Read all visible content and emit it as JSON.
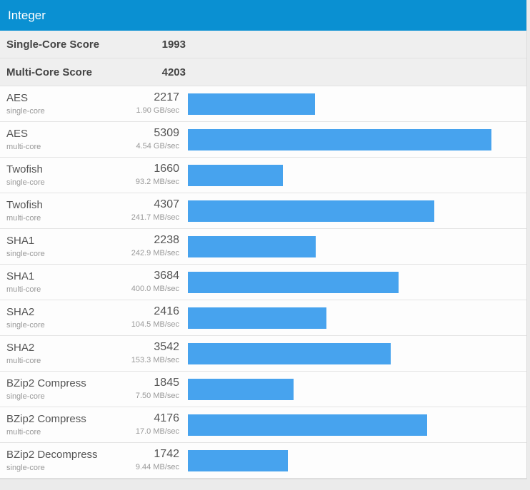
{
  "colors": {
    "header_bg": "#0a90d2",
    "bar_color": "#47a3ee",
    "page_bg": "#ebebeb",
    "summary_bg": "#efefef"
  },
  "header": {
    "title": "Integer"
  },
  "summary": {
    "rows": [
      {
        "label": "Single-Core Score",
        "value": "1993"
      },
      {
        "label": "Multi-Core Score",
        "value": "4203"
      }
    ]
  },
  "chart_data": {
    "type": "bar",
    "orientation": "horizontal",
    "title": "Integer",
    "bar_scale_max": 5790,
    "rows": [
      {
        "name": "AES",
        "mode": "single-core",
        "score": 2217,
        "rate": "1.90 GB/sec"
      },
      {
        "name": "AES",
        "mode": "multi-core",
        "score": 5309,
        "rate": "4.54 GB/sec"
      },
      {
        "name": "Twofish",
        "mode": "single-core",
        "score": 1660,
        "rate": "93.2 MB/sec"
      },
      {
        "name": "Twofish",
        "mode": "multi-core",
        "score": 4307,
        "rate": "241.7 MB/sec"
      },
      {
        "name": "SHA1",
        "mode": "single-core",
        "score": 2238,
        "rate": "242.9 MB/sec"
      },
      {
        "name": "SHA1",
        "mode": "multi-core",
        "score": 3684,
        "rate": "400.0 MB/sec"
      },
      {
        "name": "SHA2",
        "mode": "single-core",
        "score": 2416,
        "rate": "104.5 MB/sec"
      },
      {
        "name": "SHA2",
        "mode": "multi-core",
        "score": 3542,
        "rate": "153.3 MB/sec"
      },
      {
        "name": "BZip2 Compress",
        "mode": "single-core",
        "score": 1845,
        "rate": "7.50 MB/sec"
      },
      {
        "name": "BZip2 Compress",
        "mode": "multi-core",
        "score": 4176,
        "rate": "17.0 MB/sec"
      },
      {
        "name": "BZip2 Decompress",
        "mode": "single-core",
        "score": 1742,
        "rate": "9.44 MB/sec"
      }
    ]
  }
}
